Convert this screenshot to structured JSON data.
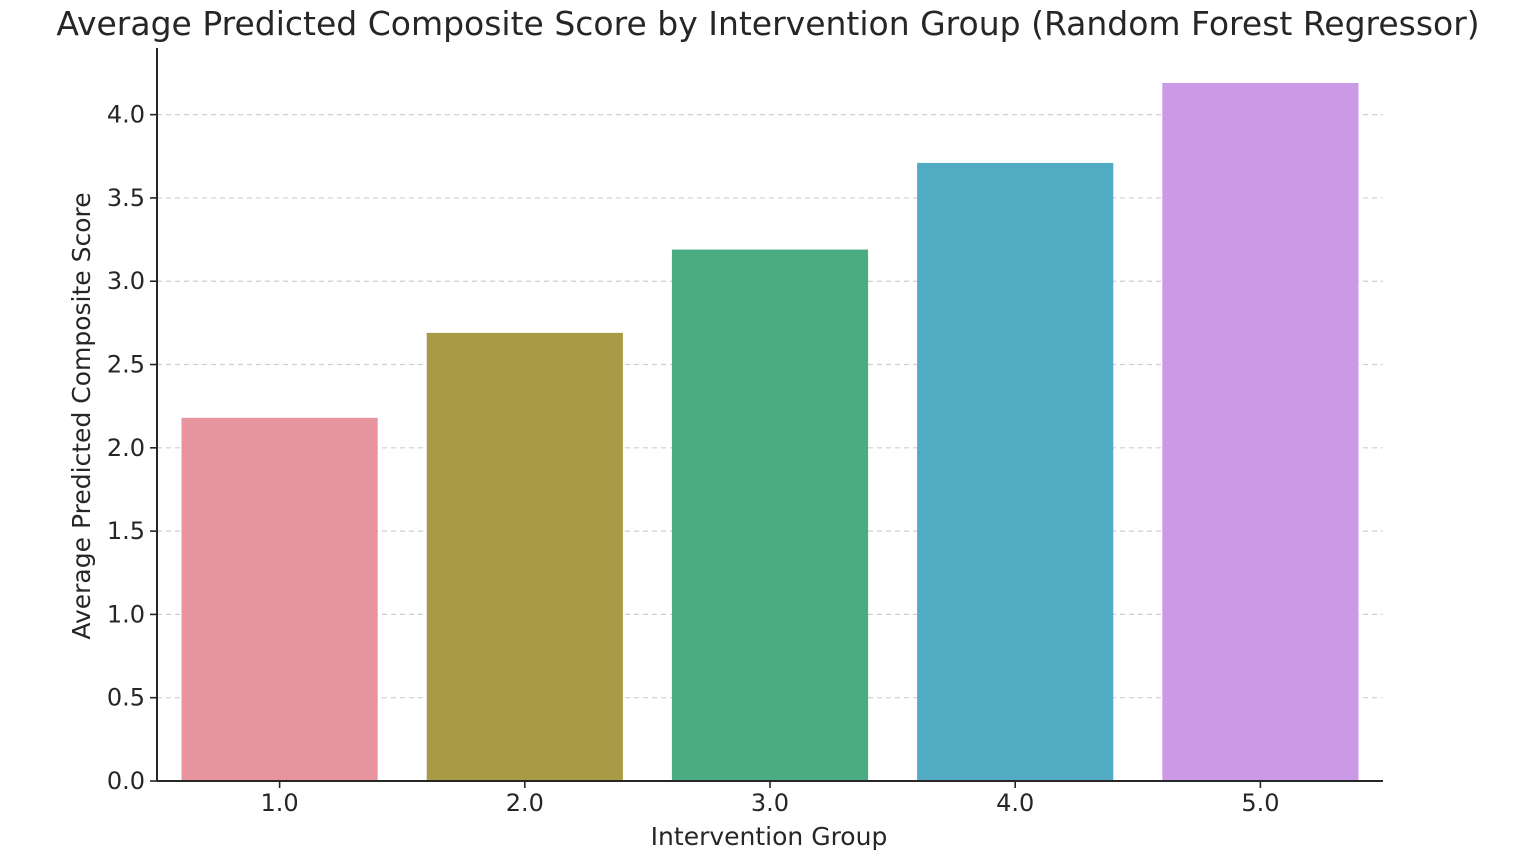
{
  "chart_data": {
    "type": "bar",
    "title": "Average Predicted Composite Score by Intervention Group (Random Forest Regressor)",
    "xlabel": "Intervention Group",
    "ylabel": "Average Predicted Composite Score",
    "categories": [
      "1.0",
      "2.0",
      "3.0",
      "4.0",
      "5.0"
    ],
    "values": [
      2.18,
      2.69,
      3.19,
      3.71,
      4.19
    ],
    "colors": [
      "#e8949f",
      "#a99b45",
      "#4aad81",
      "#50abc3",
      "#cb99e6"
    ],
    "ylim": [
      0,
      4.4
    ],
    "yticks": [
      0.0,
      0.5,
      1.0,
      1.5,
      2.0,
      2.5,
      3.0,
      3.5,
      4.0
    ],
    "ytick_labels": [
      "0.0",
      "0.5",
      "1.0",
      "1.5",
      "2.0",
      "2.5",
      "3.0",
      "3.5",
      "4.0"
    ],
    "grid": "horizontal dashed",
    "legend": "none"
  }
}
